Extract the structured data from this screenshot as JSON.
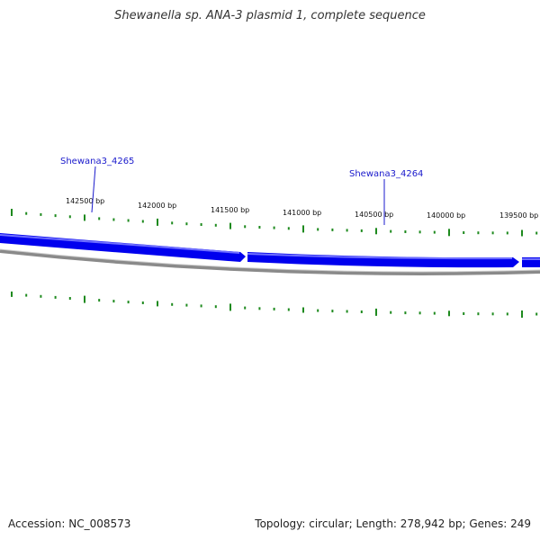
{
  "title": "Shewanella sp. ANA-3 plasmid 1, complete sequence",
  "footer": {
    "accession": "Accession: NC_008573",
    "topology": "Topology: circular; Length: 278,942 bp; Genes: 249"
  },
  "colors": {
    "gene_arrow": "#0000ee",
    "backbone": "#8a8a8a",
    "gc_ticks": "#1e8a1e",
    "gene_label": "#1a1acc"
  },
  "scale_labels": [
    "142500 bp",
    "142000 bp",
    "141500 bp",
    "141000 bp",
    "140500 bp",
    "140000 bp",
    "139500 bp"
  ],
  "genes": [
    {
      "name": "Shewana3_4265"
    },
    {
      "name": "Shewana3_4264"
    }
  ]
}
